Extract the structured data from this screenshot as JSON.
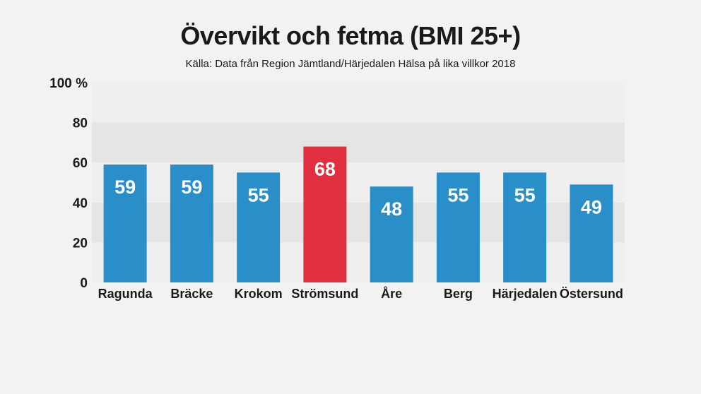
{
  "header": {
    "title": "Övervikt och fetma (BMI 25+)",
    "subtitle": "Källa: Data från Region Jämtland/Härjedalen Hälsa på lika villkor 2018"
  },
  "colors": {
    "bar": "#2a8fc8",
    "highlight": "#e0303f",
    "band_dark": "#e5e5e5",
    "band_light": "#efefef"
  },
  "chart_data": {
    "type": "bar",
    "title": "Övervikt och fetma (BMI 25+)",
    "subtitle": "Källa: Data från Region Jämtland/Härjedalen Hälsa på lika villkor 2018",
    "categories": [
      "Ragunda",
      "Bräcke",
      "Krokom",
      "Strömsund",
      "Åre",
      "Berg",
      "Härjedalen",
      "Östersund"
    ],
    "values": [
      59,
      59,
      55,
      68,
      48,
      55,
      55,
      49
    ],
    "highlighted": "Strömsund",
    "ylim": [
      0,
      100
    ],
    "yticks": [
      0,
      20,
      40,
      60,
      80,
      100
    ],
    "ytick_labels": [
      "0",
      "20",
      "40",
      "60",
      "80",
      "100 %"
    ],
    "xlabel": "",
    "ylabel": "",
    "grid": "alternating horizontal bands",
    "legend": "none"
  }
}
